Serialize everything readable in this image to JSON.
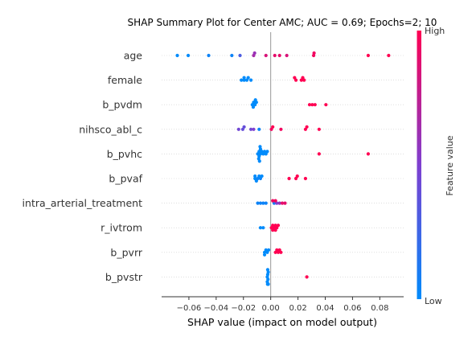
{
  "chart_data": {
    "type": "scatter",
    "title": "SHAP Summary Plot for Center AMC; AUC = 0.69; Epochs=2; 10",
    "xlabel": "SHAP value (impact on model output)",
    "ylabel": "",
    "xlim": [
      -0.08,
      0.0975
    ],
    "xticks": [
      -0.06,
      -0.04,
      -0.02,
      0.0,
      0.02,
      0.04,
      0.06,
      0.08
    ],
    "xtick_labels": [
      "−0.06",
      "−0.04",
      "−0.02",
      "0.00",
      "0.02",
      "0.04",
      "0.06",
      "0.08"
    ],
    "grid": "horizontal dotted lines per feature",
    "zero_line": true,
    "colorbar": {
      "label": "Feature value",
      "high_label": "High",
      "low_label": "Low",
      "low_color": "#008bfb",
      "mid_color": "#7e3fd0",
      "high_color": "#ff0052"
    },
    "features": [
      {
        "name": "age",
        "points": [
          {
            "x": -0.0685,
            "c": 0.0
          },
          {
            "x": -0.0605,
            "c": 0.0
          },
          {
            "x": -0.0455,
            "c": 0.05
          },
          {
            "x": -0.0285,
            "c": 0.05
          },
          {
            "x": -0.0225,
            "c": 0.3
          },
          {
            "x": -0.0125,
            "c": 0.65
          },
          {
            "x": -0.0118,
            "c": 0.6
          },
          {
            "x": -0.0035,
            "c": 0.85
          },
          {
            "x": 0.003,
            "c": 0.9
          },
          {
            "x": 0.0065,
            "c": 0.9
          },
          {
            "x": 0.0118,
            "c": 0.85
          },
          {
            "x": 0.0315,
            "c": 0.95
          },
          {
            "x": 0.0318,
            "c": 0.95
          },
          {
            "x": 0.0715,
            "c": 1.0
          },
          {
            "x": 0.0865,
            "c": 1.0
          }
        ]
      },
      {
        "name": "female",
        "points": [
          {
            "x": -0.0215,
            "c": 0.0
          },
          {
            "x": -0.0195,
            "c": 0.0
          },
          {
            "x": -0.0175,
            "c": 0.0
          },
          {
            "x": -0.0165,
            "c": 0.0
          },
          {
            "x": -0.0145,
            "c": 0.0
          },
          {
            "x": -0.0195,
            "c": 0.0
          },
          {
            "x": 0.0185,
            "c": 1.0
          },
          {
            "x": 0.0175,
            "c": 1.0
          },
          {
            "x": 0.0225,
            "c": 1.0
          },
          {
            "x": 0.0245,
            "c": 1.0
          },
          {
            "x": 0.0235,
            "c": 1.0
          }
        ]
      },
      {
        "name": "b_pvdm",
        "points": [
          {
            "x": -0.0135,
            "c": 0.0
          },
          {
            "x": -0.0125,
            "c": 0.0
          },
          {
            "x": -0.0115,
            "c": 0.0
          },
          {
            "x": -0.0105,
            "c": 0.0
          },
          {
            "x": -0.0128,
            "c": 0.0
          },
          {
            "x": -0.0112,
            "c": 0.0
          },
          {
            "x": 0.0285,
            "c": 1.0
          },
          {
            "x": 0.0305,
            "c": 1.0
          },
          {
            "x": 0.0325,
            "c": 1.0
          },
          {
            "x": 0.0405,
            "c": 1.0
          }
        ]
      },
      {
        "name": "nihsco_abl_c",
        "points": [
          {
            "x": -0.0235,
            "c": 0.45
          },
          {
            "x": -0.0205,
            "c": 0.4
          },
          {
            "x": -0.0195,
            "c": 0.4
          },
          {
            "x": -0.0145,
            "c": 0.45
          },
          {
            "x": -0.0125,
            "c": 0.5
          },
          {
            "x": -0.0085,
            "c": 0.05
          },
          {
            "x": 0.0005,
            "c": 0.95
          },
          {
            "x": 0.0015,
            "c": 1.0
          },
          {
            "x": 0.0075,
            "c": 0.95
          },
          {
            "x": 0.0255,
            "c": 1.0
          },
          {
            "x": 0.0265,
            "c": 1.0
          },
          {
            "x": 0.0355,
            "c": 1.0
          }
        ]
      },
      {
        "name": "b_pvhc",
        "points": [
          {
            "x": -0.0095,
            "c": 0.0
          },
          {
            "x": -0.0085,
            "c": 0.0
          },
          {
            "x": -0.0075,
            "c": 0.0
          },
          {
            "x": -0.0065,
            "c": 0.0
          },
          {
            "x": -0.0055,
            "c": 0.0
          },
          {
            "x": -0.0045,
            "c": 0.0
          },
          {
            "x": -0.0085,
            "c": 0.0
          },
          {
            "x": -0.0075,
            "c": 0.0
          },
          {
            "x": -0.0088,
            "c": 0.0
          },
          {
            "x": -0.0035,
            "c": 0.0
          },
          {
            "x": -0.0025,
            "c": 0.0
          },
          {
            "x": -0.0078,
            "c": 0.0
          },
          {
            "x": -0.0082,
            "c": 0.0
          },
          {
            "x": 0.0355,
            "c": 1.0
          },
          {
            "x": 0.0715,
            "c": 1.0
          }
        ]
      },
      {
        "name": "b_pvaf",
        "points": [
          {
            "x": -0.0115,
            "c": 0.0
          },
          {
            "x": -0.0095,
            "c": 0.05
          },
          {
            "x": -0.0075,
            "c": 0.05
          },
          {
            "x": -0.0115,
            "c": 0.0
          },
          {
            "x": -0.0065,
            "c": 0.0
          },
          {
            "x": -0.0105,
            "c": 0.0
          },
          {
            "x": -0.0085,
            "c": 0.0
          },
          {
            "x": 0.0135,
            "c": 1.0
          },
          {
            "x": 0.0185,
            "c": 1.0
          },
          {
            "x": 0.0195,
            "c": 1.0
          },
          {
            "x": 0.0255,
            "c": 1.0
          }
        ]
      },
      {
        "name": "intra_arterial_treatment",
        "points": [
          {
            "x": -0.0095,
            "c": 0.05
          },
          {
            "x": -0.0075,
            "c": 0.05
          },
          {
            "x": -0.0055,
            "c": 0.05
          },
          {
            "x": -0.0035,
            "c": 0.05
          },
          {
            "x": 0.0025,
            "c": 0.1
          },
          {
            "x": 0.0045,
            "c": 0.5
          },
          {
            "x": 0.0065,
            "c": 0.6
          },
          {
            "x": 0.0085,
            "c": 0.9
          },
          {
            "x": 0.0105,
            "c": 0.9
          },
          {
            "x": 0.0015,
            "c": 0.95
          },
          {
            "x": 0.0035,
            "c": 0.95
          }
        ]
      },
      {
        "name": "r_ivtrom",
        "points": [
          {
            "x": -0.0075,
            "c": 0.0
          },
          {
            "x": -0.0055,
            "c": 0.0
          },
          {
            "x": 0.0005,
            "c": 1.0
          },
          {
            "x": 0.0015,
            "c": 1.0
          },
          {
            "x": 0.0025,
            "c": 1.0
          },
          {
            "x": 0.0035,
            "c": 1.0
          },
          {
            "x": 0.0045,
            "c": 1.0
          },
          {
            "x": 0.0055,
            "c": 1.0
          },
          {
            "x": 0.0015,
            "c": 1.0
          },
          {
            "x": 0.0035,
            "c": 1.0
          }
        ]
      },
      {
        "name": "b_pvrr",
        "points": [
          {
            "x": -0.0045,
            "c": 0.0
          },
          {
            "x": -0.0025,
            "c": 0.0
          },
          {
            "x": -0.0035,
            "c": 0.0
          },
          {
            "x": -0.0015,
            "c": 0.0
          },
          {
            "x": -0.0045,
            "c": 0.0
          },
          {
            "x": 0.0035,
            "c": 1.0
          },
          {
            "x": 0.0055,
            "c": 1.0
          },
          {
            "x": 0.0075,
            "c": 1.0
          },
          {
            "x": 0.0045,
            "c": 1.0
          },
          {
            "x": 0.0065,
            "c": 1.0
          }
        ]
      },
      {
        "name": "b_pvstr",
        "points": [
          {
            "x": -0.0025,
            "c": 0.0
          },
          {
            "x": -0.0022,
            "c": 0.0
          },
          {
            "x": -0.002,
            "c": 0.0
          },
          {
            "x": -0.0018,
            "c": 0.0
          },
          {
            "x": -0.0025,
            "c": 0.0
          },
          {
            "x": -0.0022,
            "c": 0.0
          },
          {
            "x": -0.002,
            "c": 0.0
          },
          {
            "x": -0.0018,
            "c": 0.0
          },
          {
            "x": -0.0023,
            "c": 0.0
          },
          {
            "x": -0.0021,
            "c": 0.0
          },
          {
            "x": -0.0019,
            "c": 0.0
          },
          {
            "x": 0.0265,
            "c": 1.0
          }
        ]
      }
    ]
  }
}
